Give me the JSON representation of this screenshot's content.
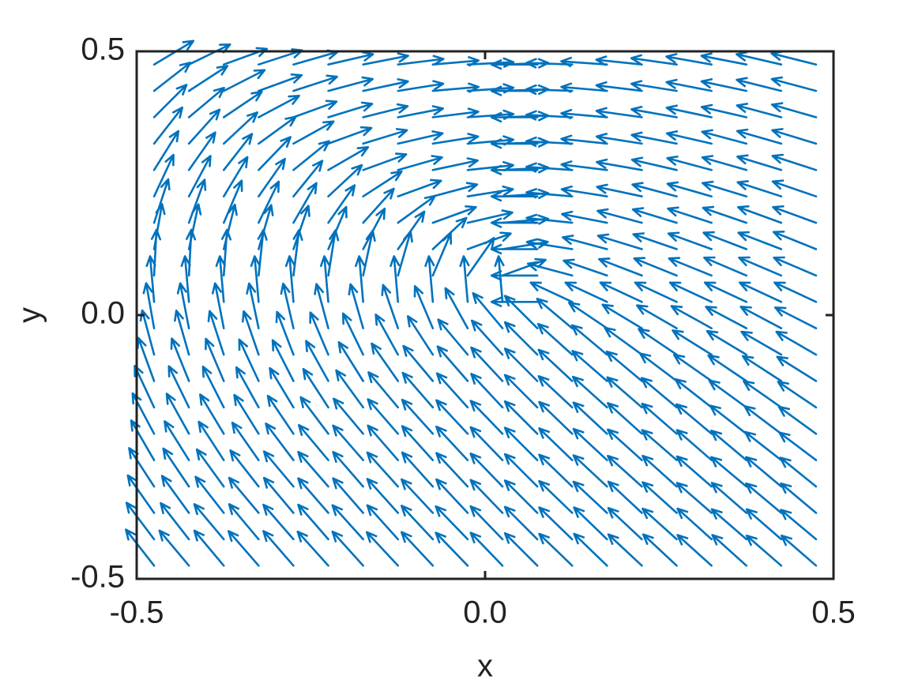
{
  "chart_data": {
    "type": "quiver",
    "xlabel": "x",
    "ylabel": "y",
    "color": "#0072bd",
    "xlim": [
      -0.5,
      0.5
    ],
    "ylim": [
      -0.5,
      0.5
    ],
    "xticks": [
      -0.5,
      {
        "value": 0,
        "label": "0.0"
      },
      0.5
    ],
    "yticks": [
      -0.5,
      {
        "value": 0,
        "label": "0.0"
      },
      0.5
    ],
    "x": [
      -0.475,
      -0.425,
      -0.375,
      -0.325,
      -0.275,
      -0.225,
      -0.175,
      -0.125,
      -0.075,
      -0.025,
      0.025,
      0.075,
      0.125,
      0.175,
      0.225,
      0.275,
      0.325,
      0.375,
      0.425,
      0.475
    ],
    "y": [
      -0.475,
      -0.425,
      -0.375,
      -0.325,
      -0.275,
      -0.225,
      -0.175,
      -0.125,
      -0.075,
      -0.025,
      0.025,
      0.075,
      0.125,
      0.175,
      0.225,
      0.275,
      0.325,
      0.375,
      0.425,
      0.475
    ],
    "angles": [
      [
        128,
        130,
        130,
        131,
        131,
        132,
        132,
        133,
        133,
        134,
        134,
        135,
        136,
        136,
        137,
        137,
        138,
        138,
        139,
        139
      ],
      [
        127,
        128,
        130,
        130,
        131,
        131,
        132,
        132,
        133,
        134,
        134,
        135,
        136,
        136,
        137,
        138,
        138,
        139,
        139,
        140
      ],
      [
        125,
        126,
        128,
        130,
        130,
        131,
        131,
        132,
        133,
        133,
        134,
        135,
        136,
        137,
        137,
        138,
        139,
        139,
        140,
        140
      ],
      [
        123,
        124,
        126,
        128,
        130,
        131,
        131,
        132,
        132,
        133,
        134,
        135,
        136,
        137,
        138,
        138,
        139,
        140,
        140,
        141
      ],
      [
        120,
        122,
        123,
        125,
        127,
        130,
        131,
        131,
        132,
        133,
        134,
        135,
        136,
        137,
        138,
        139,
        139,
        140,
        142,
        143
      ],
      [
        118,
        119,
        121,
        122,
        124,
        127,
        130,
        131,
        132,
        133,
        134,
        135,
        136,
        137,
        138,
        139,
        140,
        142,
        143,
        144
      ],
      [
        115,
        116,
        117,
        119,
        121,
        123,
        126,
        130,
        131,
        132,
        133,
        135,
        137,
        138,
        139,
        140,
        142,
        144,
        145,
        146
      ],
      [
        110,
        112,
        113,
        115,
        117,
        119,
        122,
        125,
        130,
        131,
        133,
        135,
        137,
        139,
        140,
        143,
        145,
        146,
        147,
        148
      ],
      [
        105,
        106,
        108,
        109,
        111,
        113,
        116,
        119,
        123,
        130,
        132,
        135,
        138,
        140,
        144,
        146,
        148,
        149,
        150,
        150
      ],
      [
        100,
        101,
        101,
        102,
        103,
        105,
        106,
        109,
        113,
        119,
        130,
        135,
        140,
        146,
        149,
        150,
        151,
        152,
        152,
        153
      ],
      [
        95,
        95,
        95,
        95,
        95,
        95,
        95,
        95,
        95,
        95,
        95,
        180,
        155,
        155,
        155,
        155,
        155,
        155,
        155,
        155
      ],
      [
        87,
        87,
        86,
        84,
        83,
        81,
        78,
        74,
        67,
        55,
        20,
        180,
        165,
        161,
        159,
        158,
        158,
        157,
        157,
        157
      ],
      [
        80,
        78,
        76,
        74,
        71,
        67,
        62,
        55,
        43,
        20,
        9,
        180,
        171,
        165,
        163,
        161,
        160,
        159,
        159,
        158
      ],
      [
        72,
        70,
        67,
        64,
        60,
        55,
        48,
        36,
        20,
        13,
        5,
        180,
        174,
        169,
        165,
        163,
        162,
        161,
        160,
        160
      ],
      [
        65,
        62,
        59,
        55,
        51,
        43,
        33,
        20,
        15,
        9,
        4,
        180,
        175,
        171,
        168,
        165,
        164,
        163,
        162,
        161
      ],
      [
        58,
        55,
        52,
        46,
        39,
        30,
        20,
        16,
        12,
        6,
        3,
        180,
        176,
        173,
        170,
        167,
        165,
        164,
        163,
        162
      ],
      [
        52,
        48,
        43,
        36,
        29,
        20,
        17,
        13,
        9,
        5,
        2,
        180,
        177,
        174,
        171,
        169,
        167,
        165,
        164,
        163
      ],
      [
        45,
        40,
        34,
        28,
        20,
        17,
        14,
        11,
        7,
        4,
        2,
        180,
        177,
        175,
        172,
        170,
        168,
        167,
        165,
        164
      ],
      [
        38,
        33,
        27,
        20,
        18,
        15,
        12,
        9,
        5,
        4,
        2,
        180,
        178,
        175,
        173,
        171,
        169,
        168,
        166,
        165
      ],
      [
        31,
        26,
        20,
        18,
        16,
        13,
        11,
        7,
        5,
        3,
        2,
        180,
        178,
        176,
        174,
        172,
        170,
        169,
        167,
        166
      ]
    ]
  }
}
